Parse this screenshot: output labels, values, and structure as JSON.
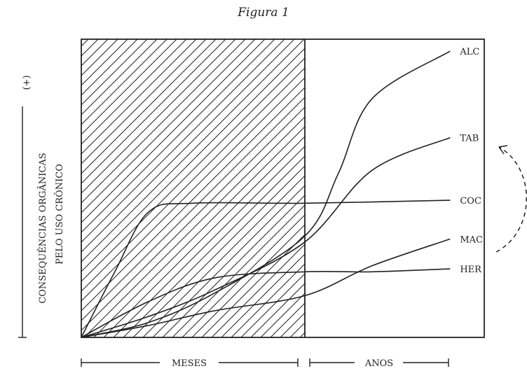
{
  "figure_title": "Figura 1",
  "chart_data": {
    "type": "line",
    "title": "Figura 1",
    "ylabel_line1": "CONSEQUÊNCIAS ORGÂNICAS",
    "ylabel_line2": "PELO USO CRÔNICO",
    "ylabel_marker": "(+)",
    "x_periods": [
      {
        "label": "MESES"
      },
      {
        "label": "ANOS"
      }
    ],
    "shaded_period": "MESES",
    "grid": false,
    "series": [
      {
        "name": "ALC",
        "points": [
          [
            0,
            0
          ],
          [
            0.3,
            0.05
          ],
          [
            0.6,
            0.15
          ],
          [
            1.0,
            0.34
          ],
          [
            1.15,
            0.55
          ],
          [
            1.3,
            0.8
          ],
          [
            1.65,
            0.96
          ]
        ]
      },
      {
        "name": "TAB",
        "points": [
          [
            0,
            0
          ],
          [
            0.3,
            0.07
          ],
          [
            0.6,
            0.16
          ],
          [
            1.0,
            0.32
          ],
          [
            1.3,
            0.56
          ],
          [
            1.65,
            0.67
          ]
        ]
      },
      {
        "name": "COC",
        "points": [
          [
            0,
            0
          ],
          [
            0.15,
            0.22
          ],
          [
            0.3,
            0.42
          ],
          [
            0.5,
            0.45
          ],
          [
            1.0,
            0.45
          ],
          [
            1.65,
            0.46
          ]
        ]
      },
      {
        "name": "MAC",
        "points": [
          [
            0,
            0
          ],
          [
            0.3,
            0.04
          ],
          [
            0.6,
            0.09
          ],
          [
            1.0,
            0.14
          ],
          [
            1.3,
            0.24
          ],
          [
            1.65,
            0.33
          ]
        ]
      },
      {
        "name": "HER",
        "points": [
          [
            0,
            0
          ],
          [
            0.3,
            0.12
          ],
          [
            0.6,
            0.2
          ],
          [
            1.0,
            0.22
          ],
          [
            1.3,
            0.22
          ],
          [
            1.65,
            0.23
          ]
        ]
      }
    ]
  }
}
